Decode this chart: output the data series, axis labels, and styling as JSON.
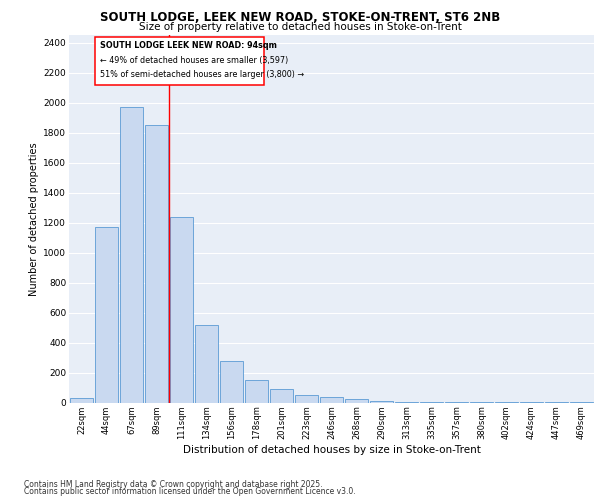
{
  "title_line1": "SOUTH LODGE, LEEK NEW ROAD, STOKE-ON-TRENT, ST6 2NB",
  "title_line2": "Size of property relative to detached houses in Stoke-on-Trent",
  "xlabel": "Distribution of detached houses by size in Stoke-on-Trent",
  "ylabel": "Number of detached properties",
  "categories": [
    "22sqm",
    "44sqm",
    "67sqm",
    "89sqm",
    "111sqm",
    "134sqm",
    "156sqm",
    "178sqm",
    "201sqm",
    "223sqm",
    "246sqm",
    "268sqm",
    "290sqm",
    "313sqm",
    "335sqm",
    "357sqm",
    "380sqm",
    "402sqm",
    "424sqm",
    "447sqm",
    "469sqm"
  ],
  "values": [
    30,
    1170,
    1970,
    1850,
    1240,
    515,
    275,
    150,
    90,
    48,
    35,
    25,
    10,
    5,
    3,
    2,
    2,
    1,
    1,
    1,
    1
  ],
  "bar_color": "#c9d9f0",
  "bar_edge_color": "#5b9bd5",
  "red_line_x": 3.5,
  "annotation_title": "SOUTH LODGE LEEK NEW ROAD: 94sqm",
  "annotation_line2": "← 49% of detached houses are smaller (3,597)",
  "annotation_line3": "51% of semi-detached houses are larger (3,800) →",
  "ylim": [
    0,
    2450
  ],
  "yticks": [
    0,
    200,
    400,
    600,
    800,
    1000,
    1200,
    1400,
    1600,
    1800,
    2000,
    2200,
    2400
  ],
  "background_color": "#e8eef7",
  "grid_color": "#ffffff",
  "footer_line1": "Contains HM Land Registry data © Crown copyright and database right 2025.",
  "footer_line2": "Contains public sector information licensed under the Open Government Licence v3.0."
}
